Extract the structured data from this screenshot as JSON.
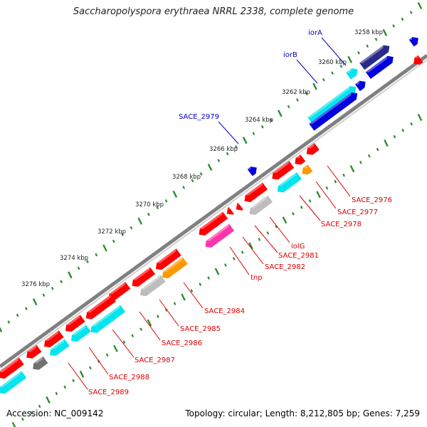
{
  "title": "Saccharopolyspora erythraea NRRL 2338, complete genome",
  "footer": {
    "accession": "Accession: NC_009142",
    "topology": "Topology: circular; Length: 8,212,805 bp; Genes: 7,259"
  },
  "colors": {
    "backbone": "#808080",
    "forward_label": "#0000cc",
    "reverse_label": "#dd0000",
    "tick": "#2e8b2e",
    "gene_red": "#ff0000",
    "gene_blue": "#0000dd",
    "gene_navy": "#2a2a8a",
    "gene_cyan": "#00e5ee",
    "gene_grey": "#bdbdbd",
    "gene_darkgrey": "#707070",
    "gene_orange": "#ff9900",
    "gene_magenta": "#ff33aa"
  },
  "scale": {
    "unit": "kbp",
    "labels": [
      "3258 kbp",
      "3260 kbp",
      "3262 kbp",
      "3264 kbp",
      "3266 kbp",
      "3268 kbp",
      "3270 kbp",
      "3272 kbp",
      "3274 kbp",
      "3276 kbp"
    ]
  },
  "forward_labels": [
    "iorA",
    "iorB",
    "SACE_2979"
  ],
  "reverse_labels": [
    "SACE_2976",
    "SACE_2977",
    "SACE_2978",
    "iolG",
    "SACE_2981",
    "SACE_2982",
    "tnp",
    "SACE_2984",
    "SACE_2985",
    "SACE_2986",
    "SACE_2987",
    "SACE_2988",
    "SACE_2989"
  ]
}
